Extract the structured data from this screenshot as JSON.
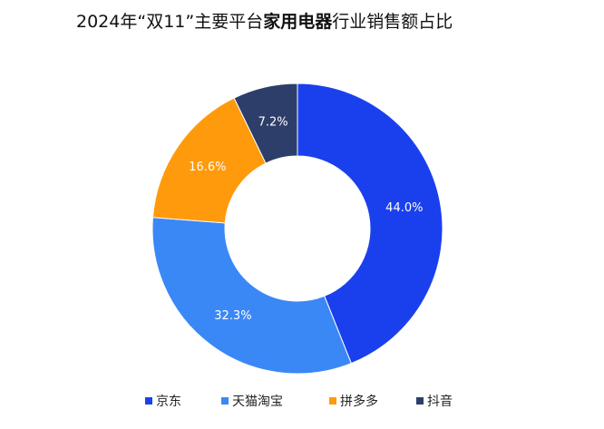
{
  "chart_data": {
    "type": "pie",
    "title": [
      "2024年“双11”主要平台",
      "家用电器",
      "行业销售额占比"
    ],
    "categories": [
      "京东",
      "天猫淘宝",
      "拼多多",
      "抖音"
    ],
    "values": [
      44.0,
      32.3,
      16.6,
      7.2
    ],
    "value_labels": [
      "44.0%",
      "32.3%",
      "16.6%",
      "7.2%"
    ],
    "colors": [
      "#1a40ee",
      "#3a88f6",
      "#ff9a0c",
      "#2e3e6a"
    ]
  }
}
